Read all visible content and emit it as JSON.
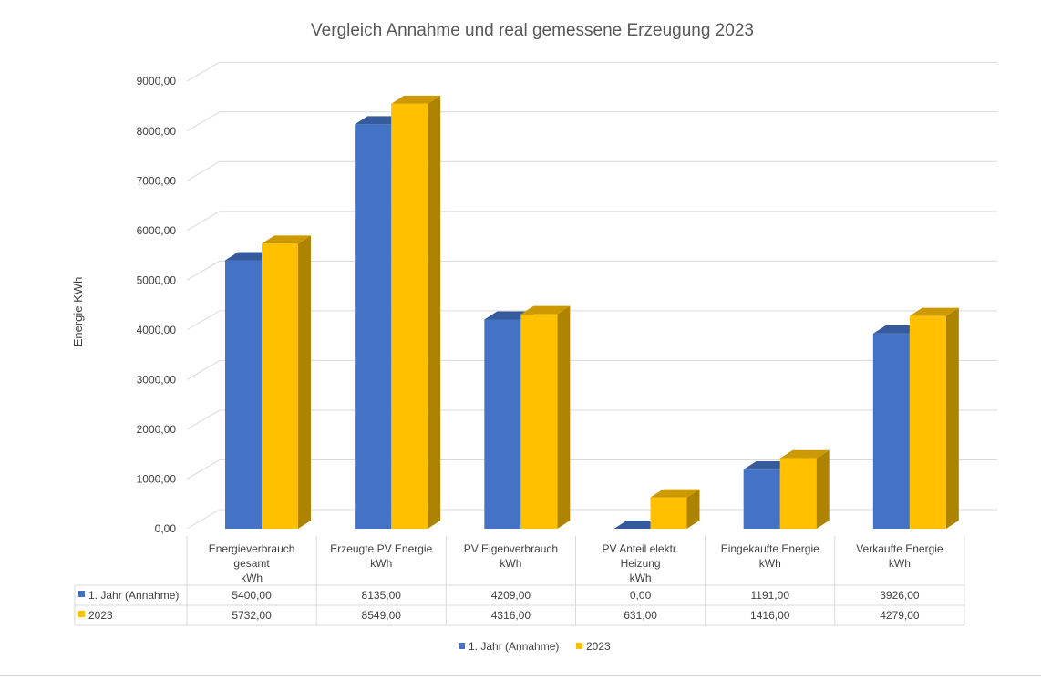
{
  "chart_data": {
    "type": "bar",
    "title": "Vergleich Annahme und real gemessene Erzeugung 2023",
    "ylabel": "Energie KWh",
    "xlabel": "",
    "ylim": [
      0,
      9000
    ],
    "y_ticks": [
      "0,00",
      "1000,00",
      "2000,00",
      "3000,00",
      "4000,00",
      "5000,00",
      "6000,00",
      "7000,00",
      "8000,00",
      "9000,00"
    ],
    "grid": true,
    "legend_position": "bottom",
    "categories": [
      [
        "Energieverbrauch",
        "gesamt",
        "kWh"
      ],
      [
        "Erzeugte PV Energie",
        "kWh"
      ],
      [
        "PV Eigenverbrauch",
        "kWh"
      ],
      [
        "PV Anteil elektr.",
        "Heizung",
        "kWh"
      ],
      [
        "Eingekaufte Energie",
        "kWh"
      ],
      [
        "Verkaufte Energie",
        "kWh"
      ]
    ],
    "series": [
      {
        "name": "1. Jahr (Annahme)",
        "color": "#4472c4",
        "values": [
          5400,
          8135,
          4209,
          0,
          1191,
          3926
        ],
        "labels": [
          "5400,00",
          "8135,00",
          "4209,00",
          "0,00",
          "1191,00",
          "3926,00"
        ]
      },
      {
        "name": "2023",
        "color": "#ffc000",
        "values": [
          5732,
          8549,
          4316,
          631,
          1416,
          4279
        ],
        "labels": [
          "5732,00",
          "8549,00",
          "4316,00",
          "631,00",
          "1416,00",
          "4279,00"
        ]
      }
    ]
  }
}
